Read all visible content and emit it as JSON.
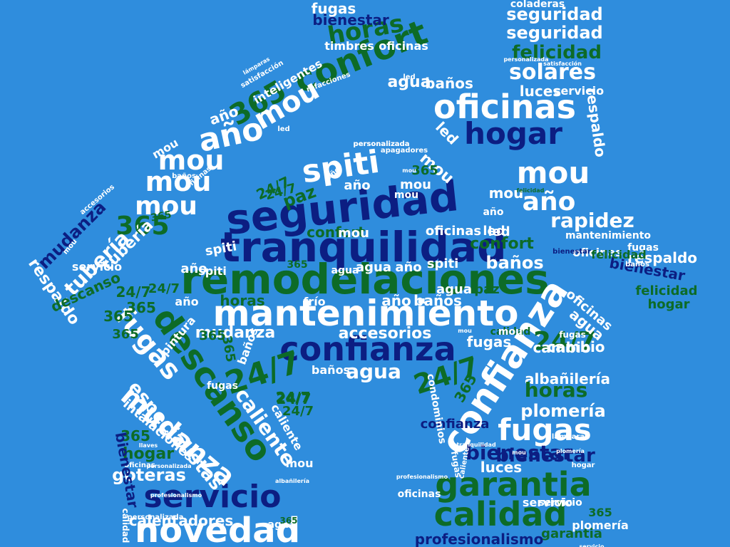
{
  "palette": {
    "background": "#2f8ddd",
    "white": "#ffffff",
    "navy": "#0c1e82",
    "green": "#0d6b27"
  },
  "words": [
    {
      "text": "remodelaciones",
      "color": "green"
    },
    {
      "text": "mantenimiento",
      "color": "white"
    },
    {
      "text": "tranquilidad",
      "color": "navy"
    },
    {
      "text": "seguridad",
      "color": "navy"
    },
    {
      "text": "confianza",
      "color": "navy"
    },
    {
      "text": "confianza",
      "color": "white"
    },
    {
      "text": "garantia",
      "color": "green"
    },
    {
      "text": "calidad",
      "color": "green"
    },
    {
      "text": "servicio",
      "color": "navy"
    },
    {
      "text": "novedad",
      "color": "white"
    },
    {
      "text": "descanso",
      "color": "green"
    },
    {
      "text": "mudanza",
      "color": "white"
    },
    {
      "text": "fugas",
      "color": "white"
    },
    {
      "text": "fugas",
      "color": "white"
    },
    {
      "text": "confort",
      "color": "green"
    },
    {
      "text": "oficinas",
      "color": "white"
    },
    {
      "text": "hogar",
      "color": "navy"
    },
    {
      "text": "horas",
      "color": "green"
    },
    {
      "text": "mou",
      "color": "white"
    },
    {
      "text": "mou",
      "color": "white"
    },
    {
      "text": "mou",
      "color": "white"
    },
    {
      "text": "mou",
      "color": "white"
    },
    {
      "text": "mou",
      "color": "white"
    },
    {
      "text": "año",
      "color": "white"
    },
    {
      "text": "año",
      "color": "white"
    },
    {
      "text": "365",
      "color": "green"
    },
    {
      "text": "365",
      "color": "green"
    },
    {
      "text": "spiti",
      "color": "white"
    },
    {
      "text": "seguridad",
      "color": "white"
    },
    {
      "text": "seguridad",
      "color": "white"
    },
    {
      "text": "felicidad",
      "color": "green"
    },
    {
      "text": "solares",
      "color": "white"
    },
    {
      "text": "24/7",
      "color": "green"
    },
    {
      "text": "24/7",
      "color": "green"
    },
    {
      "text": "24/7",
      "color": "green"
    },
    {
      "text": "bienestar",
      "color": "navy"
    },
    {
      "text": "bienestar",
      "color": "navy"
    },
    {
      "text": "profesionalismo",
      "color": "navy"
    },
    {
      "text": "garantia",
      "color": "green"
    },
    {
      "text": "rapidez",
      "color": "white"
    },
    {
      "text": "respaldo",
      "color": "white"
    },
    {
      "text": "respaldo",
      "color": "white"
    },
    {
      "text": "tubería",
      "color": "white"
    },
    {
      "text": "mudanza",
      "color": "navy"
    },
    {
      "text": "especialistas",
      "color": "white"
    },
    {
      "text": "calentadores",
      "color": "white"
    },
    {
      "text": "goteras",
      "color": "white"
    },
    {
      "text": "plomería",
      "color": "white"
    },
    {
      "text": "albañilería",
      "color": "white"
    },
    {
      "text": "cambio",
      "color": "white"
    },
    {
      "text": "agua",
      "color": "white"
    },
    {
      "text": "accesorios",
      "color": "white"
    },
    {
      "text": "mudanza",
      "color": "white"
    },
    {
      "text": "paz",
      "color": "green"
    },
    {
      "text": "baños",
      "color": "white"
    },
    {
      "text": "luces",
      "color": "white"
    },
    {
      "text": "caliente",
      "color": "white"
    },
    {
      "text": "horas",
      "color": "green"
    },
    {
      "text": "365",
      "color": "green"
    },
    {
      "text": "365",
      "color": "green"
    },
    {
      "text": "hogar",
      "color": "green"
    },
    {
      "text": "felicidad",
      "color": "green"
    },
    {
      "text": "hogar",
      "color": "green"
    },
    {
      "text": "fugas",
      "color": "white"
    },
    {
      "text": "bienestar",
      "color": "navy"
    },
    {
      "text": "intalaciones",
      "color": "white"
    },
    {
      "text": "servicio",
      "color": "white"
    },
    {
      "text": "mantenimiento",
      "color": "white"
    },
    {
      "text": "respaldo",
      "color": "white"
    },
    {
      "text": "agua",
      "color": "white"
    },
    {
      "text": "baños",
      "color": "white"
    },
    {
      "text": "mou",
      "color": "white"
    },
    {
      "text": "spiti",
      "color": "white"
    },
    {
      "text": "horas",
      "color": "green"
    },
    {
      "text": "descanso",
      "color": "green"
    },
    {
      "text": "luces",
      "color": "white"
    },
    {
      "text": "servicio",
      "color": "white"
    },
    {
      "text": "led",
      "color": "white"
    },
    {
      "text": "led",
      "color": "white"
    },
    {
      "text": "fugas",
      "color": "white"
    },
    {
      "text": "bienestar",
      "color": "navy"
    },
    {
      "text": "coladeras",
      "color": "white"
    },
    {
      "text": "timbres",
      "color": "white"
    },
    {
      "text": "oficinas",
      "color": "white"
    },
    {
      "text": "inteligentes",
      "color": "white"
    },
    {
      "text": "año",
      "color": "white"
    },
    {
      "text": "mou",
      "color": "white"
    },
    {
      "text": "confort",
      "color": "green"
    },
    {
      "text": "frío",
      "color": "white"
    },
    {
      "text": "año",
      "color": "white"
    },
    {
      "text": "baños",
      "color": "white"
    },
    {
      "text": "agua",
      "color": "white"
    },
    {
      "text": "oficinas",
      "color": "white"
    },
    {
      "text": "pintura",
      "color": "white"
    },
    {
      "text": "año",
      "color": "white"
    },
    {
      "text": "tubería",
      "color": "white"
    },
    {
      "text": "365",
      "color": "green"
    },
    {
      "text": "365",
      "color": "green"
    },
    {
      "text": "agua",
      "color": "white"
    },
    {
      "text": "24/7",
      "color": "green"
    },
    {
      "text": "24/7",
      "color": "green"
    },
    {
      "text": "24/7",
      "color": "green"
    },
    {
      "text": "24/7",
      "color": "green"
    },
    {
      "text": "mou",
      "color": "white"
    },
    {
      "text": "confianza",
      "color": "navy"
    },
    {
      "text": "caliente",
      "color": "white"
    },
    {
      "text": "led",
      "color": "white"
    },
    {
      "text": "cambio",
      "color": "white"
    },
    {
      "text": "agua",
      "color": "white"
    },
    {
      "text": "oficinas",
      "color": "white"
    },
    {
      "text": "365",
      "color": "green"
    },
    {
      "text": "365",
      "color": "green"
    },
    {
      "text": "365",
      "color": "green"
    },
    {
      "text": "agua",
      "color": "white"
    },
    {
      "text": "año",
      "color": "white"
    },
    {
      "text": "año",
      "color": "white"
    },
    {
      "text": "baños",
      "color": "white"
    },
    {
      "text": "paz",
      "color": "green"
    },
    {
      "text": "confort",
      "color": "green"
    },
    {
      "text": "mou",
      "color": "white"
    },
    {
      "text": "spiti",
      "color": "white"
    },
    {
      "text": "fugas",
      "color": "white"
    },
    {
      "text": "365",
      "color": "green"
    },
    {
      "text": "año",
      "color": "white"
    },
    {
      "text": "baños",
      "color": "white"
    },
    {
      "text": "spiti",
      "color": "white"
    },
    {
      "text": "año",
      "color": "white"
    },
    {
      "text": "mou",
      "color": "white"
    },
    {
      "text": "365",
      "color": "green"
    },
    {
      "text": "mou",
      "color": "white"
    },
    {
      "text": "24/7",
      "color": "green"
    },
    {
      "text": "24/7",
      "color": "green"
    },
    {
      "text": "24/7",
      "color": "green"
    },
    {
      "text": "servicio",
      "color": "white"
    },
    {
      "text": "personalizada",
      "color": "white"
    },
    {
      "text": "personalizada",
      "color": "white"
    },
    {
      "text": "satisfacción",
      "color": "white"
    },
    {
      "text": "lámparas",
      "color": "white"
    },
    {
      "text": "led",
      "color": "white"
    },
    {
      "text": "oficinas",
      "color": "white"
    },
    {
      "text": "baños",
      "color": "white"
    },
    {
      "text": "refacciones",
      "color": "white"
    },
    {
      "text": "accesorios",
      "color": "white"
    },
    {
      "text": "mou",
      "color": "white"
    },
    {
      "text": "365",
      "color": "green"
    },
    {
      "text": "servicio",
      "color": "white"
    },
    {
      "text": "mou",
      "color": "white"
    },
    {
      "text": "calidad",
      "color": "green"
    },
    {
      "text": "oficinas",
      "color": "white"
    },
    {
      "text": "mou",
      "color": "white"
    },
    {
      "text": "fugas",
      "color": "white"
    },
    {
      "text": "agua",
      "color": "white"
    },
    {
      "text": "365",
      "color": "green"
    },
    {
      "text": "365",
      "color": "green"
    },
    {
      "text": "plomería",
      "color": "white"
    },
    {
      "text": "personalizada",
      "color": "white"
    },
    {
      "text": "llaves",
      "color": "white"
    },
    {
      "text": "condominios",
      "color": "white"
    },
    {
      "text": "tranquilidad",
      "color": "white"
    },
    {
      "text": "servicio",
      "color": "white"
    },
    {
      "text": "lámparas",
      "color": "white"
    },
    {
      "text": "felicidad",
      "color": "green"
    },
    {
      "text": "oficinas",
      "color": "white"
    },
    {
      "text": "bienestar",
      "color": "navy"
    },
    {
      "text": "baños",
      "color": "white"
    },
    {
      "text": "felicidad",
      "color": "green"
    },
    {
      "text": "personalizada",
      "color": "white"
    },
    {
      "text": "profesionalismo",
      "color": "white"
    },
    {
      "text": "albañilería",
      "color": "white"
    },
    {
      "text": "plomería",
      "color": "white"
    },
    {
      "text": "oficinas",
      "color": "white"
    },
    {
      "text": "hogar",
      "color": "white"
    },
    {
      "text": "calidad",
      "color": "white"
    },
    {
      "text": "satisfacción",
      "color": "white"
    },
    {
      "text": "año",
      "color": "white"
    },
    {
      "text": "led",
      "color": "white"
    },
    {
      "text": "fugas",
      "color": "white"
    },
    {
      "text": "bienestar",
      "color": "navy"
    },
    {
      "text": "caliente",
      "color": "white"
    },
    {
      "text": "mou",
      "color": "white"
    },
    {
      "text": "mou",
      "color": "white"
    },
    {
      "text": "apagadores",
      "color": "white"
    },
    {
      "text": "personalizada",
      "color": "white"
    },
    {
      "text": "profesionalismo",
      "color": "white"
    },
    {
      "text": "mou",
      "color": "white"
    },
    {
      "text": "fugas",
      "color": "white"
    }
  ]
}
